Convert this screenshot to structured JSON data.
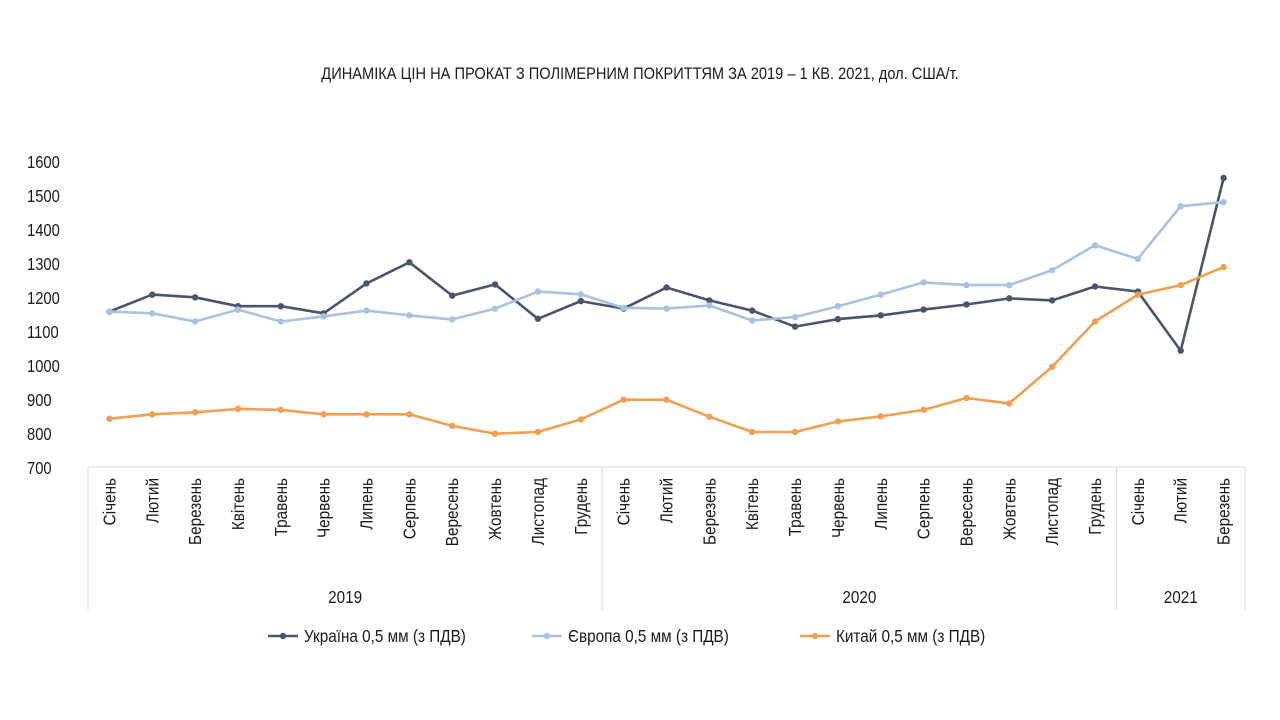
{
  "chart_data": {
    "type": "line",
    "title": "ДИНАМІКА ЦІН НА ПРОКАТ З ПОЛІМЕРНИМ ПОКРИТТЯМ ЗА 2019 – 1 КВ. 2021, дол. США/т.",
    "months": [
      "Січень",
      "Лютий",
      "Березень",
      "Квітень",
      "Травень",
      "Червень",
      "Липень",
      "Серпень",
      "Вересень",
      "Жовтень",
      "Листопад",
      "Грудень",
      "Січень",
      "Лютий",
      "Березень",
      "Квітень",
      "Травень",
      "Червень",
      "Липень",
      "Серпень",
      "Вересень",
      "Жовтень",
      "Листопад",
      "Грудень",
      "Січень",
      "Лютий",
      "Березень"
    ],
    "years": [
      {
        "label": "2019",
        "start": 0,
        "end": 11
      },
      {
        "label": "2020",
        "start": 12,
        "end": 23
      },
      {
        "label": "2021",
        "start": 24,
        "end": 26
      }
    ],
    "ylim": [
      700,
      1600
    ],
    "yticks": [
      700,
      800,
      900,
      1000,
      1100,
      1200,
      1300,
      1400,
      1500,
      1600
    ],
    "grid": false,
    "legend_position": "bottom",
    "series": [
      {
        "name": "Україна 0,5 мм (з ПДВ)",
        "color": "#4a546a",
        "values": [
          1157,
          1207,
          1199,
          1173,
          1173,
          1152,
          1240,
          1302,
          1204,
          1237,
          1136,
          1188,
          1166,
          1228,
          1190,
          1160,
          1113,
          1135,
          1146,
          1163,
          1178,
          1196,
          1190,
          1231,
          1216,
          1042,
          1550
        ]
      },
      {
        "name": "Європа 0,5 мм (з ПДВ)",
        "color": "#a9c2e0",
        "values": [
          1157,
          1152,
          1128,
          1163,
          1128,
          1143,
          1160,
          1146,
          1134,
          1166,
          1216,
          1208,
          1168,
          1166,
          1175,
          1131,
          1141,
          1173,
          1207,
          1243,
          1235,
          1235,
          1279,
          1352,
          1312,
          1467,
          1479
        ]
      },
      {
        "name": "Китай  0,5 мм (з ПДВ)",
        "color": "#f0a050",
        "values": [
          842,
          855,
          861,
          871,
          868,
          855,
          855,
          855,
          821,
          798,
          803,
          840,
          898,
          898,
          848,
          803,
          803,
          834,
          849,
          868,
          903,
          887,
          995,
          1128,
          1207,
          1235,
          1288
        ]
      }
    ]
  }
}
